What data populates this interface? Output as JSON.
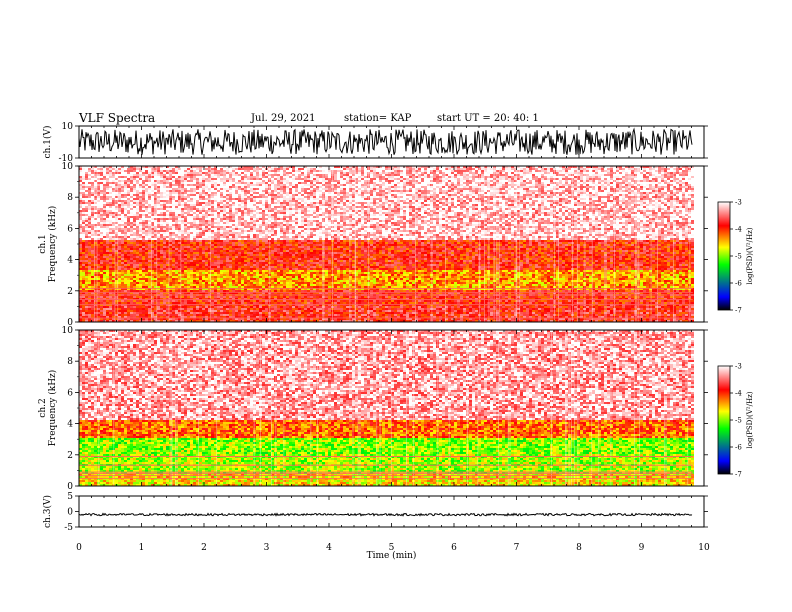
{
  "header": {
    "title": "VLF Spectra",
    "date": "Jul. 29, 2021",
    "station": "station= KAP",
    "start": "start  UT =   20: 40: 1"
  },
  "chart_data": {
    "type": "heatmap",
    "title": "VLF Spectra",
    "xlabel": "Time  (min)",
    "xlim": [
      0,
      10
    ],
    "xticks": [
      "0",
      "1",
      "2",
      "3",
      "4",
      "5",
      "6",
      "7",
      "8",
      "9",
      "10"
    ],
    "panels": [
      {
        "id": "ch1-waveform",
        "type": "line",
        "ylabel": "ch.1(V)",
        "ylim": [
          -10,
          10
        ],
        "yticks": [
          "10",
          "-10"
        ],
        "data_end_min": 9.82,
        "amplitude": "approximately ±8 V noise"
      },
      {
        "id": "ch1-spectrogram",
        "type": "heatmap",
        "ylabel": "ch.1",
        "ylabel2": "Frequency  (kHz)",
        "ylim": [
          0,
          10
        ],
        "yticks": [
          "0",
          "2",
          "4",
          "6",
          "8",
          "10"
        ],
        "bands": [
          {
            "f_from": 0.0,
            "f_to": 1.0,
            "log_psd": -3.8
          },
          {
            "f_from": 1.0,
            "f_to": 2.0,
            "log_psd": -3.9
          },
          {
            "f_from": 2.0,
            "f_to": 3.3,
            "log_psd": -4.4
          },
          {
            "f_from": 3.3,
            "f_to": 5.2,
            "log_psd": -3.9
          },
          {
            "f_from": 5.2,
            "f_to": 10.0,
            "log_psd": -3.2
          }
        ]
      },
      {
        "id": "ch2-spectrogram",
        "type": "heatmap",
        "ylabel": "ch.2",
        "ylabel2": "Frequency  (kHz)",
        "ylim": [
          0,
          10
        ],
        "yticks": [
          "0",
          "2",
          "4",
          "6",
          "8",
          "10"
        ],
        "bands": [
          {
            "f_from": 0.0,
            "f_to": 0.8,
            "log_psd": -4.6
          },
          {
            "f_from": 0.8,
            "f_to": 2.0,
            "log_psd": -4.9
          },
          {
            "f_from": 2.0,
            "f_to": 3.1,
            "log_psd": -5.0
          },
          {
            "f_from": 3.1,
            "f_to": 4.2,
            "log_psd": -4.2
          },
          {
            "f_from": 4.2,
            "f_to": 10.0,
            "log_psd": -3.3
          }
        ]
      },
      {
        "id": "ch3-waveform",
        "type": "line",
        "ylabel": "ch.3(V)",
        "ylim": [
          -5,
          5
        ],
        "yticks": [
          "5",
          "0",
          "-5"
        ],
        "data_end_min": 9.82,
        "amplitude": "approximately ±0.3 V around -1 V"
      }
    ],
    "colorbar": {
      "label": "log(PSD)(V²/Hz)",
      "range": [
        -7,
        -3
      ],
      "ticks": [
        "-3",
        "-4",
        "-5",
        "-6",
        "-7"
      ],
      "colors": [
        "#000000",
        "#0000ff",
        "#00ff00",
        "#ffff00",
        "#ff0000",
        "#ffffff"
      ]
    }
  }
}
